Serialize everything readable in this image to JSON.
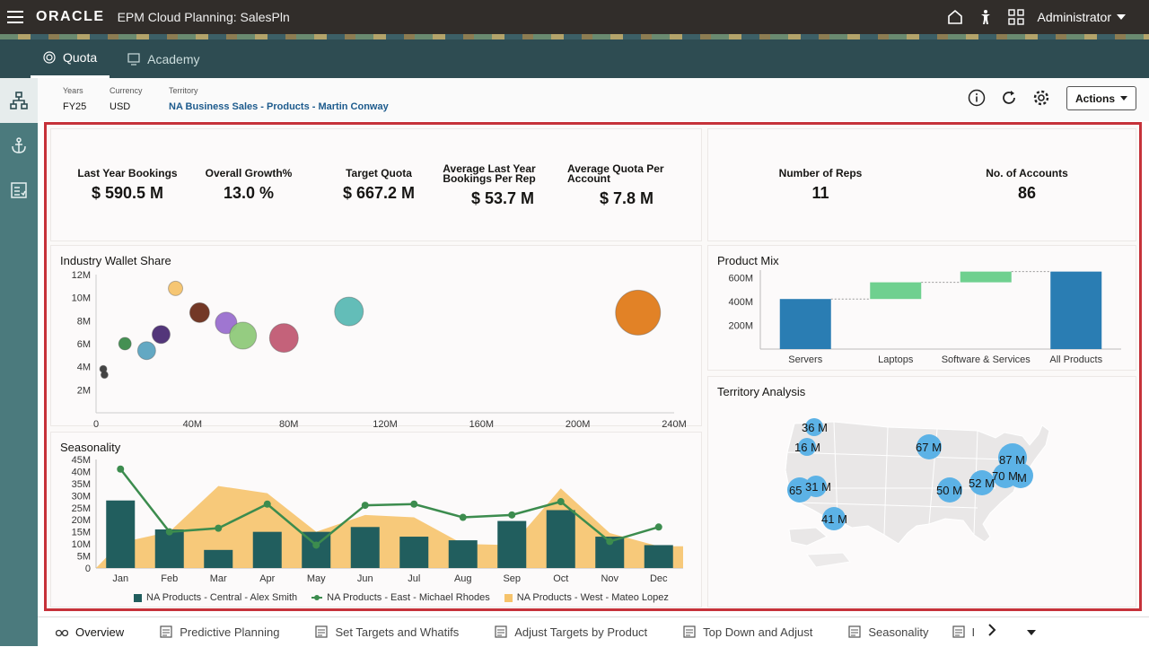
{
  "app": {
    "logo": "ORACLE",
    "title": "EPM Cloud Planning: SalesPln",
    "user": "Administrator"
  },
  "nav": {
    "tabs": [
      {
        "label": "Quota",
        "active": true
      },
      {
        "label": "Academy",
        "active": false
      }
    ]
  },
  "pov": {
    "years_label": "Years",
    "years_value": "FY25",
    "currency_label": "Currency",
    "currency_value": "USD",
    "territory_label": "Territory",
    "territory_value": "NA Business Sales - Products - Martin Conway",
    "actions_label": "Actions"
  },
  "kpis": {
    "items": [
      {
        "label": "Last Year Bookings",
        "value": "$ 590.5 M"
      },
      {
        "label": "Overall Growth%",
        "value": "13.0 %"
      },
      {
        "label": "Target Quota",
        "value": "$ 667.2 M"
      },
      {
        "label": "Average Last Year Bookings Per Rep",
        "value": "$ 53.7 M"
      },
      {
        "label": "Average Quota Per Account",
        "value": "$ 7.8 M"
      }
    ],
    "reps_label": "Number of Reps",
    "reps_value": "11",
    "accounts_label": "No. of Accounts",
    "accounts_value": "86"
  },
  "panels": {
    "wallet_title": "Industry Wallet Share",
    "mix_title": "Product Mix",
    "season_title": "Seasonality",
    "territory_title": "Territory Analysis"
  },
  "chart_data": [
    {
      "type": "scatter",
      "title": "Industry Wallet Share",
      "xlim": [
        0,
        240
      ],
      "ylim": [
        0,
        12
      ],
      "x_ticks": [
        "0",
        "40M",
        "80M",
        "120M",
        "160M",
        "200M",
        "240M"
      ],
      "y_ticks": [
        "2M",
        "4M",
        "6M",
        "8M",
        "10M",
        "12M"
      ],
      "points": [
        {
          "x": 3,
          "y": 3.8,
          "r": 4,
          "color": "#3a3a3a"
        },
        {
          "x": 3.5,
          "y": 3.3,
          "r": 4,
          "color": "#3a3a3a"
        },
        {
          "x": 12,
          "y": 6.0,
          "r": 7,
          "color": "#3b8a4a"
        },
        {
          "x": 21,
          "y": 5.4,
          "r": 10,
          "color": "#5ba3c0"
        },
        {
          "x": 27,
          "y": 6.8,
          "r": 10,
          "color": "#4a2b73"
        },
        {
          "x": 33,
          "y": 10.8,
          "r": 8,
          "color": "#f6c36b"
        },
        {
          "x": 43,
          "y": 8.7,
          "r": 11,
          "color": "#6b2d1a"
        },
        {
          "x": 54,
          "y": 7.8,
          "r": 12,
          "color": "#9a6fcf"
        },
        {
          "x": 61,
          "y": 6.7,
          "r": 15,
          "color": "#8fc97a"
        },
        {
          "x": 78,
          "y": 6.5,
          "r": 16,
          "color": "#c15a73"
        },
        {
          "x": 105,
          "y": 8.8,
          "r": 16,
          "color": "#5bb9b4"
        },
        {
          "x": 225,
          "y": 8.7,
          "r": 25,
          "color": "#e07b1a"
        }
      ]
    },
    {
      "type": "bar",
      "subtype": "waterfall",
      "title": "Product Mix",
      "categories": [
        "Servers",
        "Laptops",
        "Software & Services",
        "All Products"
      ],
      "y_ticks": [
        "200M",
        "400M",
        "600M"
      ],
      "ylim": [
        0,
        700
      ],
      "segments": [
        {
          "start": 0,
          "end": 420,
          "color": "#2a7db3"
        },
        {
          "start": 420,
          "end": 560,
          "color": "#6fd08f"
        },
        {
          "start": 560,
          "end": 650,
          "color": "#6fd08f"
        },
        {
          "start": 0,
          "end": 650,
          "color": "#2a7db3"
        }
      ]
    },
    {
      "type": "bar",
      "title": "Seasonality",
      "categories": [
        "Jan",
        "Feb",
        "Mar",
        "Apr",
        "May",
        "Jun",
        "Jul",
        "Aug",
        "Sep",
        "Oct",
        "Nov",
        "Dec"
      ],
      "y_ticks": [
        "0",
        "5M",
        "10M",
        "15M",
        "20M",
        "25M",
        "30M",
        "35M",
        "40M",
        "45M"
      ],
      "ylim": [
        0,
        45
      ],
      "series": [
        {
          "name": "NA Products - Central - Alex Smith",
          "kind": "bar",
          "color": "#215e5e",
          "values": [
            28,
            16,
            7.5,
            15,
            15,
            17,
            13,
            11.5,
            19.5,
            24,
            13,
            9.5
          ]
        },
        {
          "name": "NA Products - East - Michael Rhodes",
          "kind": "line",
          "color": "#3c8c4e",
          "values": [
            41,
            15,
            16.5,
            26.5,
            9.5,
            26,
            26.5,
            21,
            22,
            27.5,
            11,
            17
          ]
        },
        {
          "name": "NA Products - West - Mateo Lopez",
          "kind": "area",
          "color": "#f6c36b",
          "values": [
            10.5,
            15,
            34,
            31,
            15,
            22,
            21,
            10,
            9.5,
            33,
            14.5,
            9
          ]
        }
      ]
    }
  ],
  "map": {
    "bubbles": [
      "36 M",
      "16 M",
      "67 M",
      "87 M",
      "70 M",
      "M",
      "52 M",
      "50 M",
      "65",
      "31 M",
      "41 M"
    ]
  },
  "bottom_tabs": [
    {
      "label": "Overview",
      "active": true
    },
    {
      "label": "Predictive Planning",
      "active": false
    },
    {
      "label": "Set Targets and Whatifs",
      "active": false
    },
    {
      "label": "Adjust Targets by Product",
      "active": false
    },
    {
      "label": "Top Down and Adjust",
      "active": false
    },
    {
      "label": "Seasonality",
      "active": false
    },
    {
      "label": "I",
      "active": false
    }
  ]
}
